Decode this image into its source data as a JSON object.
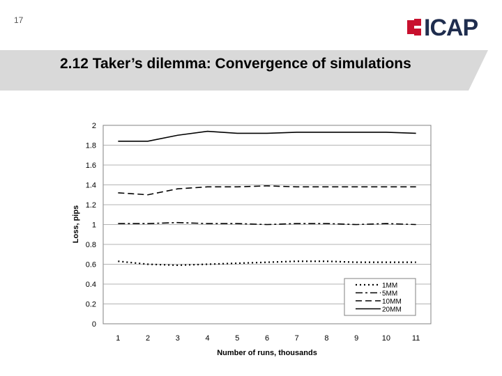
{
  "slide": {
    "page_number": "17",
    "title": "2.12 Taker’s dilemma: Convergence of simulations",
    "logo_text": "ICAP",
    "logo_color": "#1f2d4e",
    "logo_mark_color": "#c8102e"
  },
  "chart_data": {
    "type": "line",
    "xlabel": "Number of runs, thousands",
    "ylabel": "Loss, pips",
    "categories": [
      "1",
      "2",
      "3",
      "4",
      "5",
      "6",
      "7",
      "8",
      "9",
      "10",
      "11"
    ],
    "ylim": [
      0,
      2
    ],
    "yticks": [
      "0",
      "0.2",
      "0.4",
      "0.6",
      "0.8",
      "1",
      "1.2",
      "1.4",
      "1.6",
      "1.8",
      "2"
    ],
    "grid": true,
    "legend_position": "bottom-right",
    "series": [
      {
        "name": "1MM",
        "style": "dotted",
        "values": [
          0.63,
          0.6,
          0.59,
          0.6,
          0.61,
          0.62,
          0.63,
          0.63,
          0.62,
          0.62,
          0.62
        ]
      },
      {
        "name": "5MM",
        "style": "dash-dot",
        "values": [
          1.01,
          1.01,
          1.02,
          1.01,
          1.01,
          1.0,
          1.01,
          1.01,
          1.0,
          1.01,
          1.0
        ]
      },
      {
        "name": "10MM",
        "style": "dashed",
        "values": [
          1.32,
          1.3,
          1.36,
          1.38,
          1.38,
          1.39,
          1.38,
          1.38,
          1.38,
          1.38,
          1.38
        ]
      },
      {
        "name": "20MM",
        "style": "solid",
        "values": [
          1.84,
          1.84,
          1.9,
          1.94,
          1.92,
          1.92,
          1.93,
          1.93,
          1.93,
          1.93,
          1.92
        ]
      }
    ]
  }
}
